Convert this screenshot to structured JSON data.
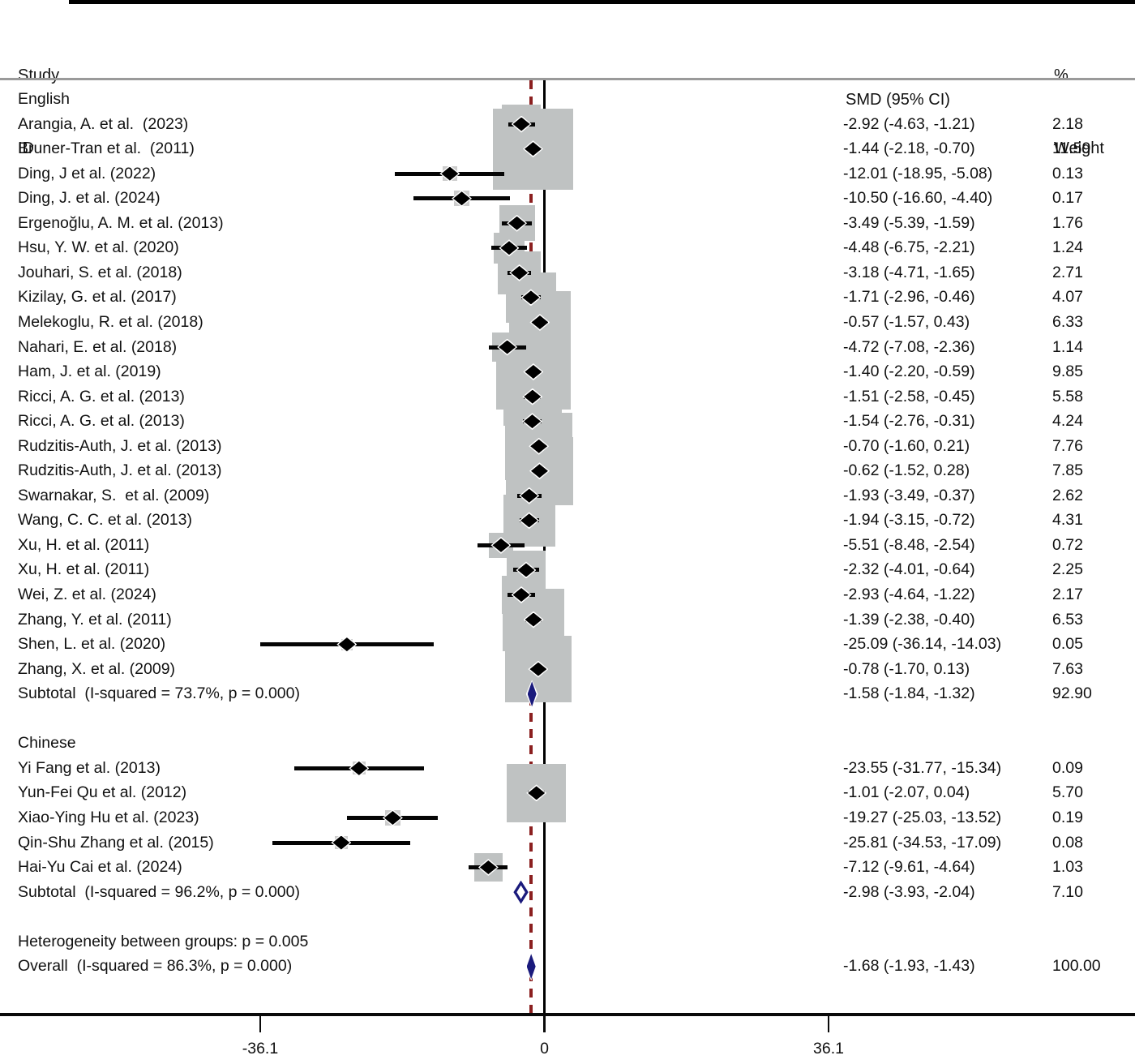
{
  "header": {
    "study_line1": "Study",
    "study_line2": "ID",
    "smd": "SMD (95% CI)",
    "weight_line1": "%",
    "weight_line2": "Weight"
  },
  "colors": {
    "box_fill": "#bfc2c2",
    "box_fill_small": "#cccccc",
    "marker_fill": "#000000",
    "marker_halo": "#ffffff",
    "pooled_fill": "#1a1a7c",
    "dashed_line": "#8b1f1f",
    "zero_line": "#000000",
    "separator": "#9a9a9a",
    "footer_bg": "#e9efed",
    "text": "#111111"
  },
  "chart_data": {
    "type": "forest",
    "effect_measure": "SMD",
    "x_axis": {
      "ticks": [
        {
          "value": -36.1,
          "label": "-36.1"
        },
        {
          "value": 0,
          "label": "0"
        },
        {
          "value": 36.1,
          "label": "36.1"
        }
      ],
      "zero_line": 0,
      "overall_effect_line": -1.68
    },
    "groups": [
      {
        "name": "English",
        "studies": [
          {
            "label": "Arangia, A. et al.  (2023)",
            "est": -2.92,
            "lo": -4.63,
            "hi": -1.21,
            "smd": "-2.92 (-4.63, -1.21)",
            "weight": 2.18,
            "weight_label": "2.18"
          },
          {
            "label": "Bruner-Tran et al.  (2011)",
            "est": -1.44,
            "lo": -2.18,
            "hi": -0.7,
            "smd": "-1.44 (-2.18, -0.70)",
            "weight": 11.59,
            "weight_label": "11.59"
          },
          {
            "label": "Ding, J et al. (2022)",
            "est": -12.01,
            "lo": -18.95,
            "hi": -5.08,
            "smd": "-12.01 (-18.95, -5.08)",
            "weight": 0.13,
            "weight_label": "0.13"
          },
          {
            "label": "Ding, J. et al. (2024)",
            "est": -10.5,
            "lo": -16.6,
            "hi": -4.4,
            "smd": "-10.50 (-16.60, -4.40)",
            "weight": 0.17,
            "weight_label": "0.17"
          },
          {
            "label": "Ergenoğlu, A. M. et al. (2013)",
            "est": -3.49,
            "lo": -5.39,
            "hi": -1.59,
            "smd": "-3.49 (-5.39, -1.59)",
            "weight": 1.76,
            "weight_label": "1.76"
          },
          {
            "label": "Hsu, Y. W. et al. (2020)",
            "est": -4.48,
            "lo": -6.75,
            "hi": -2.21,
            "smd": "-4.48 (-6.75, -2.21)",
            "weight": 1.24,
            "weight_label": "1.24"
          },
          {
            "label": "Jouhari, S. et al. (2018)",
            "est": -3.18,
            "lo": -4.71,
            "hi": -1.65,
            "smd": "-3.18 (-4.71, -1.65)",
            "weight": 2.71,
            "weight_label": "2.71"
          },
          {
            "label": "Kizilay, G. et al. (2017)",
            "est": -1.71,
            "lo": -2.96,
            "hi": -0.46,
            "smd": "-1.71 (-2.96, -0.46)",
            "weight": 4.07,
            "weight_label": "4.07"
          },
          {
            "label": "Melekoglu, R. et al. (2018)",
            "est": -0.57,
            "lo": -1.57,
            "hi": 0.43,
            "smd": "-0.57 (-1.57, 0.43)",
            "weight": 6.33,
            "weight_label": "6.33"
          },
          {
            "label": "Nahari, E. et al. (2018)",
            "est": -4.72,
            "lo": -7.08,
            "hi": -2.36,
            "smd": "-4.72 (-7.08, -2.36)",
            "weight": 1.14,
            "weight_label": "1.14"
          },
          {
            "label": "Ham, J. et al. (2019)",
            "est": -1.4,
            "lo": -2.2,
            "hi": -0.59,
            "smd": "-1.40 (-2.20, -0.59)",
            "weight": 9.85,
            "weight_label": "9.85"
          },
          {
            "label": "Ricci, A. G. et al. (2013)",
            "est": -1.51,
            "lo": -2.58,
            "hi": -0.45,
            "smd": "-1.51 (-2.58, -0.45)",
            "weight": 5.58,
            "weight_label": "5.58"
          },
          {
            "label": "Ricci, A. G. et al. (2013)",
            "est": -1.54,
            "lo": -2.76,
            "hi": -0.31,
            "smd": "-1.54 (-2.76, -0.31)",
            "weight": 4.24,
            "weight_label": "4.24"
          },
          {
            "label": "Rudzitis-Auth, J. et al. (2013)",
            "est": -0.7,
            "lo": -1.6,
            "hi": 0.21,
            "smd": "-0.70 (-1.60, 0.21)",
            "weight": 7.76,
            "weight_label": "7.76"
          },
          {
            "label": "Rudzitis-Auth, J. et al. (2013)",
            "est": -0.62,
            "lo": -1.52,
            "hi": 0.28,
            "smd": "-0.62 (-1.52, 0.28)",
            "weight": 7.85,
            "weight_label": "7.85"
          },
          {
            "label": "Swarnakar, S.  et al. (2009)",
            "est": -1.93,
            "lo": -3.49,
            "hi": -0.37,
            "smd": "-1.93 (-3.49, -0.37)",
            "weight": 2.62,
            "weight_label": "2.62"
          },
          {
            "label": "Wang, C. C. et al. (2013)",
            "est": -1.94,
            "lo": -3.15,
            "hi": -0.72,
            "smd": "-1.94 (-3.15, -0.72)",
            "weight": 4.31,
            "weight_label": "4.31"
          },
          {
            "label": "Xu, H. et al. (2011)",
            "est": -5.51,
            "lo": -8.48,
            "hi": -2.54,
            "smd": "-5.51 (-8.48, -2.54)",
            "weight": 0.72,
            "weight_label": "0.72"
          },
          {
            "label": "Xu, H. et al. (2011)",
            "est": -2.32,
            "lo": -4.01,
            "hi": -0.64,
            "smd": "-2.32 (-4.01, -0.64)",
            "weight": 2.25,
            "weight_label": "2.25"
          },
          {
            "label": "Wei, Z. et al. (2024)",
            "est": -2.93,
            "lo": -4.64,
            "hi": -1.22,
            "smd": "-2.93 (-4.64, -1.22)",
            "weight": 2.17,
            "weight_label": "2.17"
          },
          {
            "label": "Zhang, Y. et al. (2011)",
            "est": -1.39,
            "lo": -2.38,
            "hi": -0.4,
            "smd": "-1.39 (-2.38, -0.40)",
            "weight": 6.53,
            "weight_label": "6.53"
          },
          {
            "label": "Shen, L. et al. (2020)",
            "est": -25.09,
            "lo": -36.14,
            "hi": -14.03,
            "smd": "-25.09 (-36.14, -14.03)",
            "weight": 0.05,
            "weight_label": "0.05"
          },
          {
            "label": "Zhang, X. et al. (2009)",
            "est": -0.78,
            "lo": -1.7,
            "hi": 0.13,
            "smd": "-0.78 (-1.70, 0.13)",
            "weight": 7.63,
            "weight_label": "7.63"
          }
        ],
        "subtotal": {
          "label": "Subtotal  (I-squared = 73.7%, p = 0.000)",
          "est": -1.58,
          "lo": -1.84,
          "hi": -1.32,
          "smd": "-1.58 (-1.84, -1.32)",
          "weight_label": "92.90",
          "marker": "filled"
        }
      },
      {
        "name": "Chinese",
        "studies": [
          {
            "label": "Yi Fang et al. (2013)",
            "est": -23.55,
            "lo": -31.77,
            "hi": -15.34,
            "smd": "-23.55 (-31.77, -15.34)",
            "weight": 0.09,
            "weight_label": "0.09"
          },
          {
            "label": "Yun-Fei Qu et al. (2012)",
            "est": -1.01,
            "lo": -2.07,
            "hi": 0.04,
            "smd": "-1.01 (-2.07, 0.04)",
            "weight": 5.7,
            "weight_label": "5.70"
          },
          {
            "label": "Xiao-Ying Hu et al. (2023)",
            "est": -19.27,
            "lo": -25.03,
            "hi": -13.52,
            "smd": "-19.27 (-25.03, -13.52)",
            "weight": 0.19,
            "weight_label": "0.19"
          },
          {
            "label": "Qin-Shu Zhang et al. (2015)",
            "est": -25.81,
            "lo": -34.53,
            "hi": -17.09,
            "smd": "-25.81 (-34.53, -17.09)",
            "weight": 0.08,
            "weight_label": "0.08"
          },
          {
            "label": "Hai-Yu Cai et al. (2024)",
            "est": -7.12,
            "lo": -9.61,
            "hi": -4.64,
            "smd": "-7.12 (-9.61, -4.64)",
            "weight": 1.03,
            "weight_label": "1.03"
          }
        ],
        "subtotal": {
          "label": "Subtotal  (I-squared = 96.2%, p = 0.000)",
          "est": -2.98,
          "lo": -3.93,
          "hi": -2.04,
          "smd": "-2.98 (-3.93, -2.04)",
          "weight_label": "7.10",
          "marker": "open"
        }
      }
    ],
    "between_groups_note": "Heterogeneity between groups: p = 0.005",
    "overall": {
      "label": "Overall  (I-squared = 86.3%, p = 0.000)",
      "est": -1.68,
      "lo": -1.93,
      "hi": -1.43,
      "smd": "-1.68 (-1.93, -1.43)",
      "weight_label": "100.00",
      "marker": "filled"
    }
  }
}
